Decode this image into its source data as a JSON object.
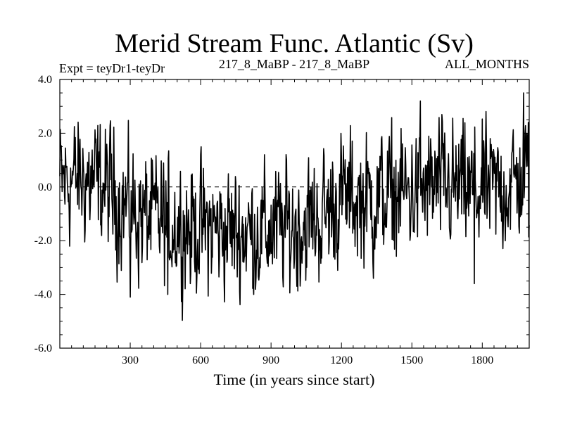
{
  "chart_data": {
    "type": "line",
    "title": "Merid Stream Func. Atlantic (Sv)",
    "subtitle_left": "Expt = teyDr1-teyDr",
    "subtitle_center": "217_8_MaBP - 217_8_MaBP",
    "subtitle_right": "ALL_MONTHS",
    "xlabel": "Time (in years since start)",
    "ylabel": "",
    "xlim": [
      0,
      2000
    ],
    "ylim": [
      -6.0,
      4.0
    ],
    "x_ticks": [
      300,
      600,
      900,
      1200,
      1500,
      1800
    ],
    "x_tick_labels": [
      "300",
      "600",
      "900",
      "1200",
      "1500",
      "1800"
    ],
    "y_ticks": [
      4.0,
      2.0,
      0.0,
      -2.0,
      -4.0,
      -6.0
    ],
    "y_tick_labels": [
      "4.0",
      "2.0",
      "0.0",
      "-2.0",
      "-4.0",
      "-6.0"
    ],
    "reference_line": 0.0,
    "series": [
      {
        "name": "Merid Stream Func. Atlantic",
        "trend_x": [
          0,
          100,
          200,
          300,
          400,
          500,
          600,
          700,
          800,
          900,
          1000,
          1100,
          1200,
          1300,
          1400,
          1500,
          1600,
          1700,
          1800,
          1900,
          2000
        ],
        "trend_y": [
          0.2,
          0.3,
          0.0,
          -0.9,
          -1.2,
          -1.4,
          -1.5,
          -1.6,
          -1.7,
          -1.6,
          -1.5,
          -1.2,
          -0.4,
          -0.5,
          -0.3,
          -0.2,
          0.0,
          -0.1,
          -0.2,
          0.0,
          0.4
        ],
        "noise_amplitude": 1.1,
        "extremes_x": [
          300,
          460,
          555,
          1010,
          1335,
          1535,
          1765,
          1975,
          1995
        ],
        "extremes_y": [
          -4.1,
          -4.0,
          -3.6,
          -3.7,
          -3.4,
          3.2,
          -3.6,
          3.5,
          2.4
        ]
      }
    ]
  }
}
